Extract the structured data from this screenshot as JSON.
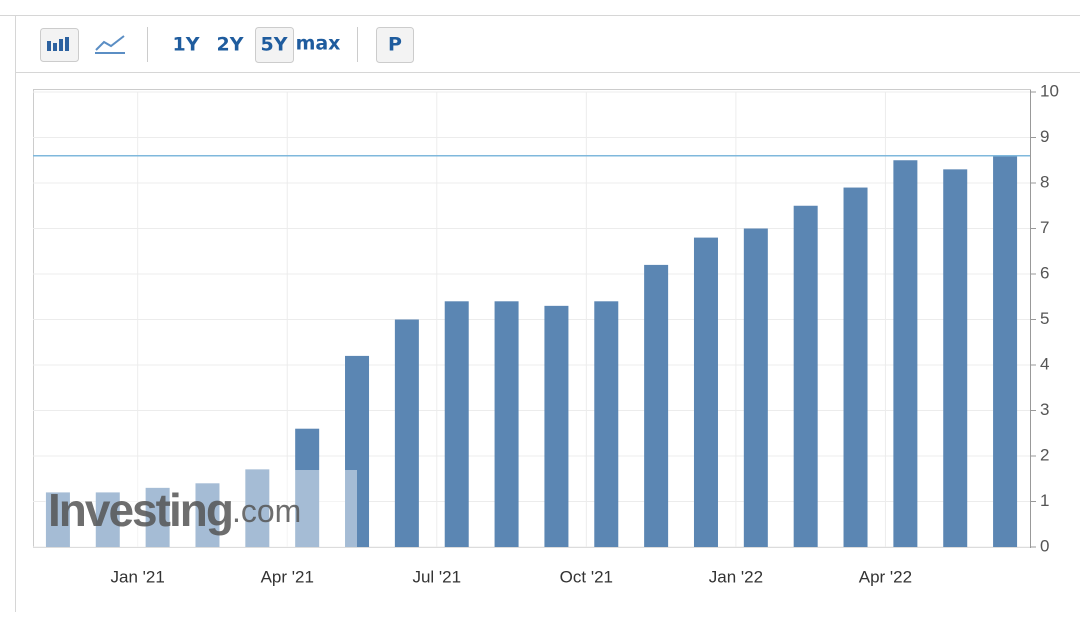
{
  "toolbar": {
    "buttons": [
      "1Y",
      "2Y",
      "5Y",
      "max",
      "P"
    ]
  },
  "watermark": {
    "brand": "Investing",
    "suffix": ".com"
  },
  "chart_data": {
    "type": "bar",
    "categories": [
      null,
      null,
      "Jan '21",
      null,
      null,
      "Apr '21",
      null,
      null,
      "Jul '21",
      null,
      null,
      "Oct '21",
      null,
      null,
      "Jan '22",
      null,
      null,
      "Apr '22",
      null,
      null
    ],
    "values": [
      1.2,
      1.2,
      1.3,
      1.4,
      1.7,
      2.6,
      4.2,
      5.0,
      5.4,
      5.4,
      5.3,
      5.4,
      6.2,
      6.8,
      7.0,
      7.5,
      7.9,
      8.5,
      8.3,
      8.6
    ],
    "color": "#5b86b3",
    "ylim": [
      0,
      10
    ],
    "yticks": [
      0,
      1,
      2,
      3,
      4,
      5,
      6,
      7,
      8,
      9,
      10
    ],
    "grid": true
  }
}
